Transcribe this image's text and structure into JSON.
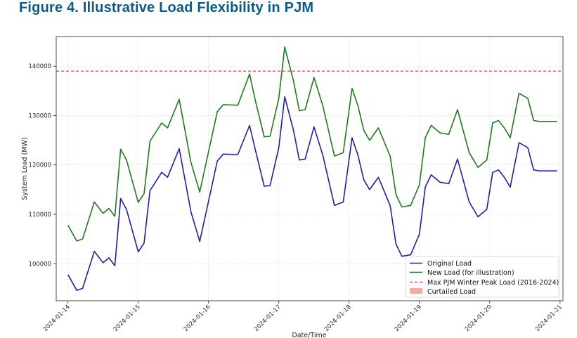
{
  "figure_title": "Figure 4. Illustrative Load Flexibility in PJM",
  "chart_data": {
    "type": "line",
    "xlabel": "Date/Time",
    "ylabel": "System Load (MW)",
    "x_ticks": [
      "2024-01-14",
      "2024-01-15",
      "2024-01-16",
      "2024-01-17",
      "2024-01-18",
      "2024-01-19",
      "2024-01-20",
      "2024-01-21"
    ],
    "y_ticks": [
      100000,
      110000,
      120000,
      130000,
      140000
    ],
    "xlim": [
      "2024-01-13T20:00",
      "2024-01-21T01:00"
    ],
    "ylim": [
      92500,
      146000
    ],
    "grid": true,
    "legend_position": "bottom-right",
    "x": [
      "2024-01-14T00:00",
      "2024-01-14T03:00",
      "2024-01-14T05:00",
      "2024-01-14T09:00",
      "2024-01-14T12:00",
      "2024-01-14T14:00",
      "2024-01-14T16:00",
      "2024-01-14T18:00",
      "2024-01-14T20:00",
      "2024-01-15T00:00",
      "2024-01-15T02:00",
      "2024-01-15T04:00",
      "2024-01-15T08:00",
      "2024-01-15T10:00",
      "2024-01-15T14:00",
      "2024-01-15T18:00",
      "2024-01-15T21:00",
      "2024-01-16T03:00",
      "2024-01-16T05:00",
      "2024-01-16T10:00",
      "2024-01-16T14:00",
      "2024-01-16T16:00",
      "2024-01-16T19:00",
      "2024-01-16T21:00",
      "2024-01-17T00:00",
      "2024-01-17T02:00",
      "2024-01-17T05:00",
      "2024-01-17T07:00",
      "2024-01-17T09:00",
      "2024-01-17T12:00",
      "2024-01-17T15:00",
      "2024-01-17T19:00",
      "2024-01-17T22:00",
      "2024-01-18T01:00",
      "2024-01-18T03:00",
      "2024-01-18T05:00",
      "2024-01-18T07:00",
      "2024-01-18T10:00",
      "2024-01-18T14:00",
      "2024-01-18T16:00",
      "2024-01-18T18:00",
      "2024-01-18T21:00",
      "2024-01-19T00:00",
      "2024-01-19T02:00",
      "2024-01-19T04:00",
      "2024-01-19T07:00",
      "2024-01-19T10:00",
      "2024-01-19T13:00",
      "2024-01-19T17:00",
      "2024-01-19T20:00",
      "2024-01-19T23:00",
      "2024-01-20T01:00",
      "2024-01-20T03:00",
      "2024-01-20T05:00",
      "2024-01-20T07:00",
      "2024-01-20T10:00",
      "2024-01-20T13:00",
      "2024-01-20T15:00",
      "2024-01-20T17:00",
      "2024-01-20T19:00",
      "2024-01-20T20:00",
      "2024-01-20T22:00",
      "2024-01-20T23:00"
    ],
    "series": [
      {
        "name": "Original Load",
        "color": "#1f1fa8",
        "style": "solid",
        "values": [
          97800,
          94600,
          95000,
          102500,
          100200,
          101200,
          99600,
          113200,
          111000,
          102400,
          104200,
          114800,
          118500,
          117500,
          123300,
          110500,
          104500,
          120800,
          122200,
          122100,
          128000,
          123000,
          115700,
          115800,
          123500,
          133800,
          127000,
          121000,
          121200,
          127700,
          122000,
          111800,
          112500,
          125500,
          122000,
          117000,
          115000,
          117500,
          111800,
          104000,
          101500,
          101800,
          106000,
          115500,
          118000,
          116500,
          116200,
          121200,
          112500,
          109500,
          111000,
          118500,
          119000,
          117500,
          115500,
          124500,
          123500,
          119000,
          118800,
          118800,
          118800,
          118800,
          118800
        ],
        "note": ""
      },
      {
        "name": "New Load (for illustration)",
        "color": "#1e7a1e",
        "style": "solid",
        "values": [
          107800,
          104600,
          105000,
          112500,
          110200,
          111200,
          109600,
          123200,
          121000,
          112400,
          114200,
          124800,
          128500,
          127500,
          133300,
          120500,
          114500,
          130800,
          132200,
          132100,
          138400,
          133000,
          125700,
          125800,
          133500,
          143900,
          137000,
          131000,
          131200,
          137700,
          132000,
          121800,
          122500,
          135500,
          132000,
          127000,
          125000,
          127500,
          121800,
          114000,
          111500,
          111800,
          116000,
          125500,
          128000,
          126500,
          126200,
          131200,
          122500,
          119500,
          121000,
          128500,
          129000,
          127500,
          125500,
          134500,
          133500,
          129000,
          128800,
          128800,
          128800,
          128800,
          128800
        ]
      },
      {
        "name": "Max PJM Winter Peak Load (2016-2024)",
        "color": "#e8262a",
        "style": "dashed",
        "value": 139000
      },
      {
        "name": "Curtailed Load",
        "color": "#f2a0a0",
        "style": "fill",
        "region": [
          "2024-01-17T05:00",
          "2024-01-17T08:00"
        ]
      }
    ]
  }
}
